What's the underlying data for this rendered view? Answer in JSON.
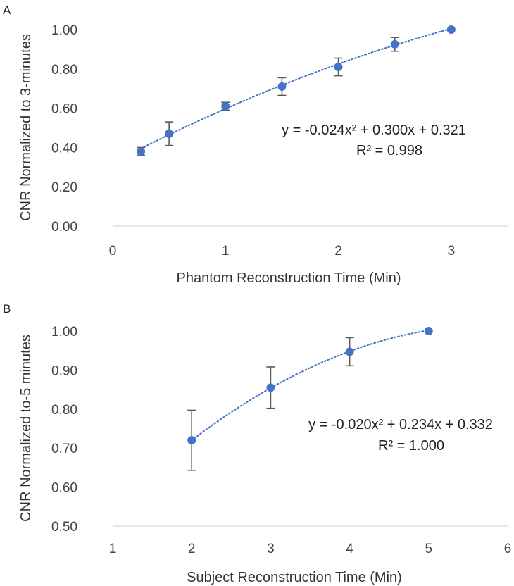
{
  "chart_data": [
    {
      "panel": "A",
      "type": "scatter",
      "xlabel": "Phantom Reconstruction Time (Min)",
      "ylabel": "CNR Normalized to 3-minutes",
      "xlim": [
        0,
        3.5
      ],
      "ylim": [
        0,
        1
      ],
      "xticks": [
        0,
        1,
        2,
        3
      ],
      "xtick_labels": [
        "0",
        "1",
        "2",
        "3"
      ],
      "yticks": [
        0,
        0.2,
        0.4,
        0.6,
        0.8,
        1.0
      ],
      "ytick_labels": [
        "0.00",
        "0.20",
        "0.40",
        "0.60",
        "0.80",
        "1.00"
      ],
      "grid": false,
      "marker_color": "#4472c4",
      "errorbar_color": "#595959",
      "trendline": {
        "type": "polynomial",
        "a": -0.024,
        "b": 0.3,
        "c": 0.321,
        "style": "dotted",
        "range": [
          0.25,
          3
        ]
      },
      "equation": "y = -0.024x² + 0.300x + 0.321",
      "r_squared": "R² = 0.998",
      "points": [
        {
          "x": 0.25,
          "y": 0.38,
          "err": 0.02
        },
        {
          "x": 0.5,
          "y": 0.47,
          "err": 0.06
        },
        {
          "x": 1,
          "y": 0.61,
          "err": 0.02
        },
        {
          "x": 1.5,
          "y": 0.71,
          "err": 0.045
        },
        {
          "x": 2,
          "y": 0.81,
          "err": 0.045
        },
        {
          "x": 2.5,
          "y": 0.925,
          "err": 0.035
        },
        {
          "x": 3,
          "y": 1.0,
          "err": 0
        }
      ]
    },
    {
      "panel": "B",
      "type": "scatter",
      "xlabel": "Subject Reconstruction Time (Min)",
      "ylabel": "CNR Normalized to-5 minutes",
      "xlim": [
        1,
        6
      ],
      "ylim": [
        0.5,
        1.0
      ],
      "xticks": [
        1,
        2,
        3,
        4,
        5,
        6
      ],
      "xtick_labels": [
        "1",
        "2",
        "3",
        "4",
        "5",
        "6"
      ],
      "yticks": [
        0.5,
        0.6,
        0.7,
        0.8,
        0.9,
        1.0
      ],
      "ytick_labels": [
        "0.50",
        "0.60",
        "0.70",
        "0.80",
        "0.90",
        "1.00"
      ],
      "grid": false,
      "marker_color": "#4472c4",
      "errorbar_color": "#595959",
      "trendline": {
        "type": "polynomial",
        "a": -0.02,
        "b": 0.234,
        "c": 0.332,
        "style": "dotted",
        "range": [
          2,
          5
        ]
      },
      "equation": "y = -0.020x² + 0.234x + 0.332",
      "r_squared": "R² = 1.000",
      "points": [
        {
          "x": 2,
          "y": 0.72,
          "err": 0.077
        },
        {
          "x": 3,
          "y": 0.855,
          "err": 0.053
        },
        {
          "x": 4,
          "y": 0.947,
          "err": 0.036
        },
        {
          "x": 5,
          "y": 1.0,
          "err": 0
        }
      ]
    }
  ]
}
